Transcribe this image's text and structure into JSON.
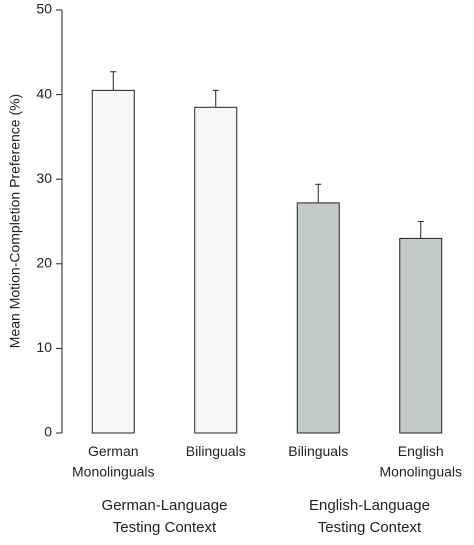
{
  "chart_data": {
    "type": "bar",
    "y_label": "Mean Motion-Completion Preference (%)",
    "categories": [
      "German Monolinguals",
      "Bilinguals",
      "Bilinguals",
      "English Monolinguals"
    ],
    "values": [
      40.5,
      38.5,
      27.2,
      23.0
    ],
    "errors": [
      2.2,
      2.0,
      2.2,
      2.0
    ],
    "colors": [
      "#f7f7f7",
      "#f7f7f7",
      "#c3cbc8",
      "#c3cbc8"
    ],
    "groups": [
      "German-Language Testing Context",
      "English-Language Testing Context"
    ],
    "ylim": [
      0,
      50
    ],
    "yticks": [
      0,
      10,
      20,
      30,
      40,
      50
    ]
  }
}
